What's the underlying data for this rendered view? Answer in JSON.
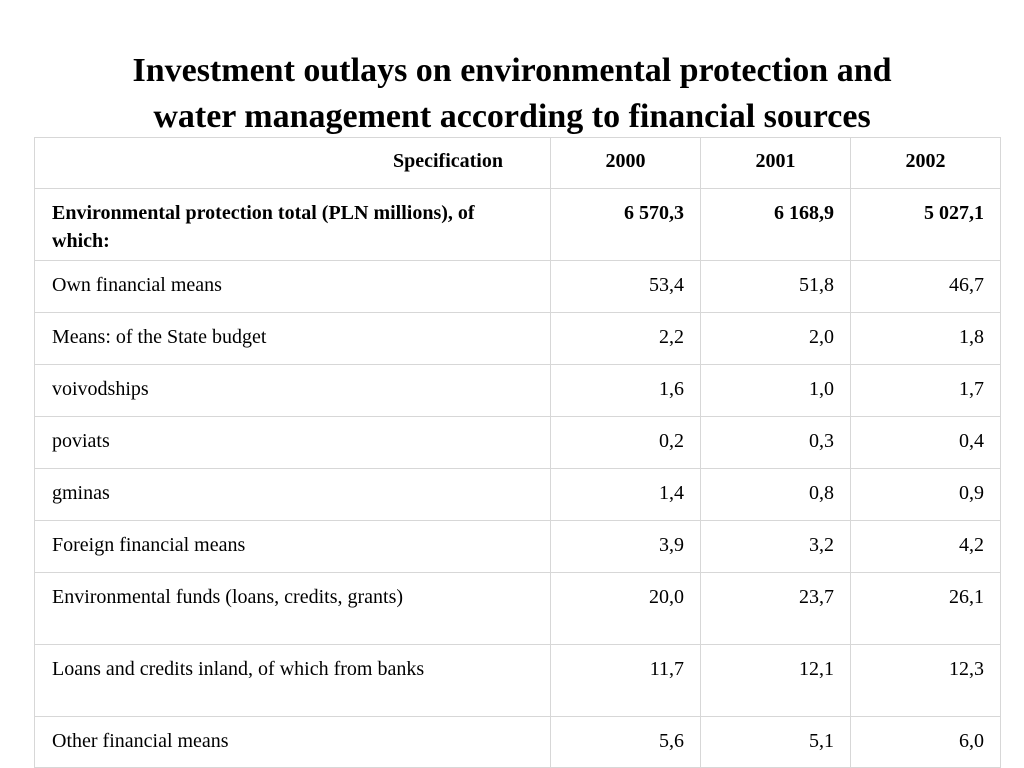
{
  "title": {
    "line1": "Investment outlays on environmental protection and",
    "line2": "water management according to financial sources"
  },
  "table": {
    "header": {
      "specification": "Specification",
      "years": [
        "2000",
        "2001",
        "2002"
      ]
    },
    "rows": [
      {
        "label": "Environmental protection total (PLN millions), of which:",
        "values": [
          "6 570,3",
          "6 168,9",
          "5 027,1"
        ],
        "bold": true
      },
      {
        "label": "Own financial means",
        "values": [
          "53,4",
          "51,8",
          "46,7"
        ]
      },
      {
        "label": "Means: of the State budget",
        "values": [
          "2,2",
          "2,0",
          "1,8"
        ]
      },
      {
        "label": "voivodships",
        "values": [
          "1,6",
          "1,0",
          "1,7"
        ]
      },
      {
        "label": "poviats",
        "values": [
          "0,2",
          "0,3",
          "0,4"
        ]
      },
      {
        "label": "gminas",
        "values": [
          "1,4",
          "0,8",
          "0,9"
        ]
      },
      {
        "label": "Foreign financial means",
        "values": [
          "3,9",
          "3,2",
          "4,2"
        ]
      },
      {
        "label": "Environmental funds (loans, credits, grants)",
        "values": [
          "20,0",
          "23,7",
          "26,1"
        ]
      },
      {
        "label": "Loans and credits inland, of which from banks",
        "values": [
          "11,7",
          "12,1",
          "12,3"
        ]
      },
      {
        "label": "Other financial means",
        "values": [
          "5,6",
          "5,1",
          "6,0"
        ]
      }
    ]
  }
}
